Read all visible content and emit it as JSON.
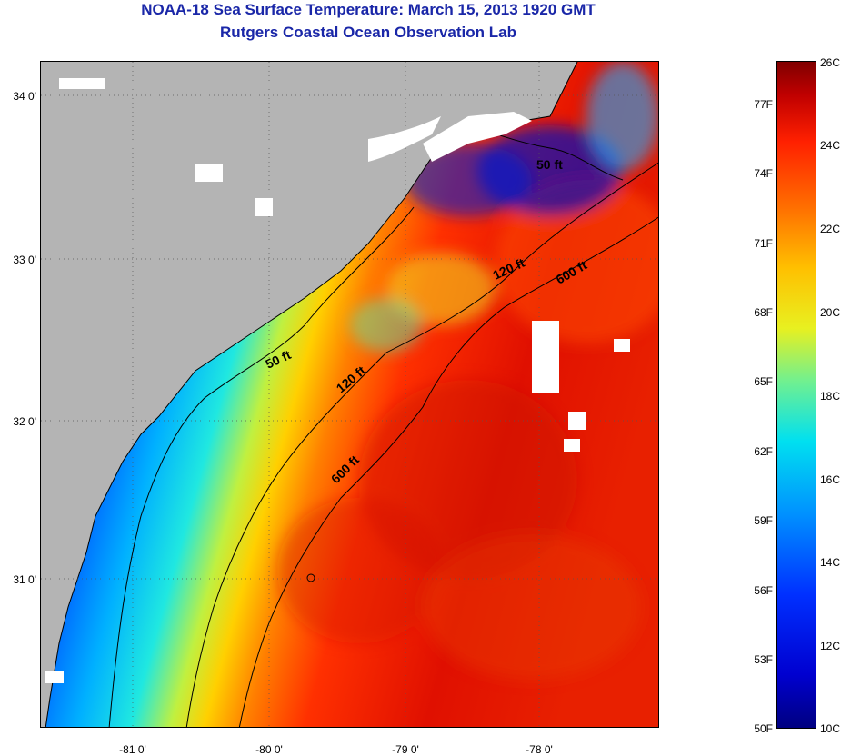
{
  "header": {
    "title": "NOAA-18 Sea Surface Temperature:  March 15, 2013 1920 GMT",
    "subtitle": "Rutgers Coastal Ocean Observation Lab"
  },
  "map": {
    "lat_labels": [
      "34 0'",
      "33 0'",
      "32 0'",
      "31 0'"
    ],
    "lon_labels": [
      "-81 0'",
      "-80 0'",
      "-79 0'",
      "-78 0'"
    ],
    "contour_labels": [
      "50 ft",
      "120 ft",
      "600 ft",
      "50 ft",
      "120 ft",
      "600 ft"
    ],
    "land_color": "#b4b4b4",
    "cloud_color": "#ffffff"
  },
  "colorbar": {
    "fahrenheit": [
      "77F",
      "74F",
      "71F",
      "68F",
      "65F",
      "62F",
      "59F",
      "56F",
      "53F",
      "50F"
    ],
    "celsius": [
      "26C",
      "24C",
      "22C",
      "20C",
      "18C",
      "16C",
      "14C",
      "12C",
      "10C"
    ],
    "colors": [
      "#000080",
      "#0000d0",
      "#0030ff",
      "#0090ff",
      "#00e0f0",
      "#70f090",
      "#e8f020",
      "#ffc000",
      "#ff7000",
      "#ff2000",
      "#c00000",
      "#800000"
    ]
  }
}
